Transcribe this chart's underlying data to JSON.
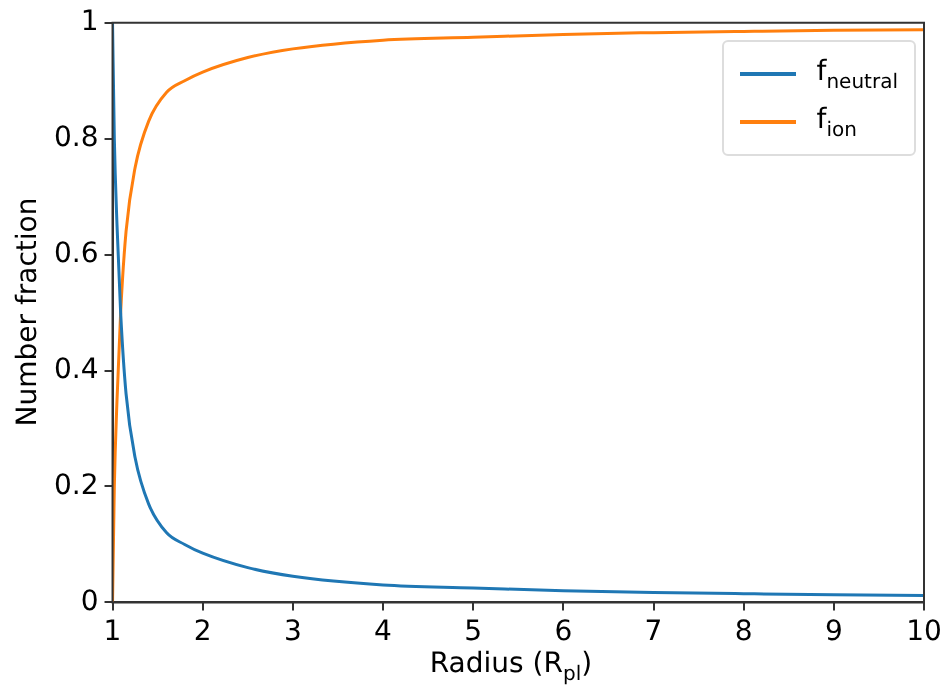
{
  "chart_data": {
    "type": "line",
    "xlabel": "Radius (R$_{pl}$)",
    "ylabel": "Number fraction",
    "x": [
      1,
      1.02,
      1.05,
      1.09,
      1.15,
      1.25,
      1.4,
      1.6,
      1.8,
      2,
      2.5,
      3,
      4,
      5,
      6,
      7,
      8,
      9,
      10
    ],
    "series": [
      {
        "name": "f$_{neutral}$",
        "color": "#1f77b4",
        "values": [
          1,
          0.8,
          0.65,
          0.5,
          0.36,
          0.25,
          0.17,
          0.12,
          0.1,
          0.085,
          0.06,
          0.045,
          0.03,
          0.025,
          0.02,
          0.017,
          0.015,
          0.013,
          0.012
        ]
      },
      {
        "name": "f$_{ion}$",
        "color": "#ff7f0e",
        "values": [
          0,
          0.2,
          0.35,
          0.5,
          0.64,
          0.75,
          0.83,
          0.88,
          0.9,
          0.915,
          0.94,
          0.955,
          0.97,
          0.975,
          0.98,
          0.983,
          0.985,
          0.987,
          0.988
        ]
      }
    ],
    "xlim": [
      1,
      10
    ],
    "xticks": [
      1,
      2,
      3,
      4,
      5,
      6,
      7,
      8,
      9,
      10
    ],
    "ylim": [
      0,
      1
    ],
    "yticks": [
      0,
      0.2,
      0.4,
      0.6,
      0.8,
      1
    ],
    "legend": "top right",
    "marker": "none",
    "line_style": "solid",
    "grid": false
  }
}
